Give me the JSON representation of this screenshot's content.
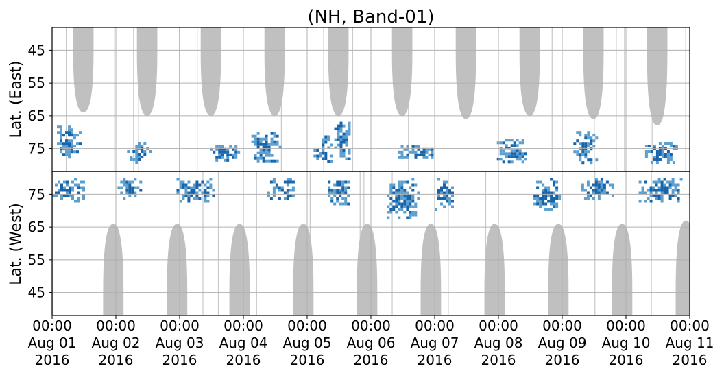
{
  "chart_data": {
    "type": "heatmap",
    "title": "(NH, Band-01)",
    "x_axis": {
      "range": [
        "2016-08-01 00:00",
        "2016-08-11 00:00"
      ],
      "ticks": [
        {
          "time": "00:00",
          "date": "Aug 01",
          "year": "2016"
        },
        {
          "time": "00:00",
          "date": "Aug 02",
          "year": "2016"
        },
        {
          "time": "00:00",
          "date": "Aug 03",
          "year": "2016"
        },
        {
          "time": "00:00",
          "date": "Aug 04",
          "year": "2016"
        },
        {
          "time": "00:00",
          "date": "Aug 05",
          "year": "2016"
        },
        {
          "time": "00:00",
          "date": "Aug 06",
          "year": "2016"
        },
        {
          "time": "00:00",
          "date": "Aug 07",
          "year": "2016"
        },
        {
          "time": "00:00",
          "date": "Aug 08",
          "year": "2016"
        },
        {
          "time": "00:00",
          "date": "Aug 09",
          "year": "2016"
        },
        {
          "time": "00:00",
          "date": "Aug 10",
          "year": "2016"
        },
        {
          "time": "00:00",
          "date": "Aug 11",
          "year": "2016"
        }
      ]
    },
    "panels": [
      {
        "name": "east",
        "ylabel": "Lat. (East)",
        "lat_range": [
          38,
          82
        ],
        "ticks": [
          45,
          55,
          65,
          75
        ],
        "tick_labels": [
          "45",
          "55",
          "65",
          "75"
        ]
      },
      {
        "name": "west",
        "ylabel": "Lat. (West)",
        "lat_range": [
          82,
          38
        ],
        "ticks": [
          75,
          65,
          55,
          45
        ],
        "tick_labels": [
          "75",
          "65",
          "55",
          "45"
        ]
      }
    ],
    "grid": true,
    "colors": {
      "strong": "#1764ab",
      "weak": "#5b9fcf",
      "no_data": "#c0c0c0",
      "grid": "#b0b0b0",
      "axis": "#000000"
    },
    "no_data_regions": [
      {
        "panel": "east",
        "day": 0.49,
        "half_width": 0.16,
        "lat_min": 64
      },
      {
        "panel": "east",
        "day": 1.49,
        "half_width": 0.16,
        "lat_min": 65
      },
      {
        "panel": "east",
        "day": 2.49,
        "half_width": 0.16,
        "lat_min": 65
      },
      {
        "panel": "east",
        "day": 3.49,
        "half_width": 0.16,
        "lat_min": 65
      },
      {
        "panel": "east",
        "day": 4.49,
        "half_width": 0.16,
        "lat_min": 65
      },
      {
        "panel": "east",
        "day": 5.49,
        "half_width": 0.16,
        "lat_min": 65
      },
      {
        "panel": "east",
        "day": 6.49,
        "half_width": 0.16,
        "lat_min": 66
      },
      {
        "panel": "east",
        "day": 7.49,
        "half_width": 0.16,
        "lat_min": 65
      },
      {
        "panel": "east",
        "day": 8.49,
        "half_width": 0.16,
        "lat_min": 66
      },
      {
        "panel": "east",
        "day": 9.49,
        "half_width": 0.16,
        "lat_min": 68
      },
      {
        "panel": "west",
        "day": 0.96,
        "half_width": 0.16,
        "lat_min": 66
      },
      {
        "panel": "west",
        "day": 1.96,
        "half_width": 0.16,
        "lat_min": 66
      },
      {
        "panel": "west",
        "day": 2.94,
        "half_width": 0.16,
        "lat_min": 66
      },
      {
        "panel": "west",
        "day": 3.94,
        "half_width": 0.16,
        "lat_min": 66
      },
      {
        "panel": "west",
        "day": 4.94,
        "half_width": 0.16,
        "lat_min": 66
      },
      {
        "panel": "west",
        "day": 5.94,
        "half_width": 0.16,
        "lat_min": 66
      },
      {
        "panel": "west",
        "day": 6.94,
        "half_width": 0.16,
        "lat_min": 66
      },
      {
        "panel": "west",
        "day": 7.94,
        "half_width": 0.16,
        "lat_min": 66
      },
      {
        "panel": "west",
        "day": 8.94,
        "half_width": 0.16,
        "lat_min": 66
      },
      {
        "panel": "west",
        "day": 9.94,
        "half_width": 0.16,
        "lat_min": 67
      }
    ],
    "activity_clusters": [
      {
        "panel": "east",
        "day": 0.25,
        "day_width": 0.35,
        "lat_low": 78,
        "lat_high": 68
      },
      {
        "panel": "east",
        "day": 1.35,
        "day_width": 0.35,
        "lat_low": 79,
        "lat_high": 73
      },
      {
        "panel": "east",
        "day": 2.7,
        "day_width": 0.45,
        "lat_low": 79,
        "lat_high": 74
      },
      {
        "panel": "east",
        "day": 3.35,
        "day_width": 0.45,
        "lat_low": 79,
        "lat_high": 70
      },
      {
        "panel": "east",
        "day": 4.25,
        "day_width": 0.3,
        "lat_low": 79,
        "lat_high": 71
      },
      {
        "panel": "east",
        "day": 4.55,
        "day_width": 0.25,
        "lat_low": 78,
        "lat_high": 66
      },
      {
        "panel": "east",
        "day": 5.7,
        "day_width": 0.55,
        "lat_low": 78,
        "lat_high": 74
      },
      {
        "panel": "east",
        "day": 7.2,
        "day_width": 0.45,
        "lat_low": 79,
        "lat_high": 72
      },
      {
        "panel": "east",
        "day": 8.35,
        "day_width": 0.35,
        "lat_low": 79,
        "lat_high": 68
      },
      {
        "panel": "east",
        "day": 9.55,
        "day_width": 0.5,
        "lat_low": 79,
        "lat_high": 73
      },
      {
        "panel": "west",
        "day": 0.25,
        "day_width": 0.5,
        "lat_low": 80,
        "lat_high": 73
      },
      {
        "panel": "west",
        "day": 1.2,
        "day_width": 0.35,
        "lat_low": 80,
        "lat_high": 74
      },
      {
        "panel": "west",
        "day": 2.25,
        "day_width": 0.6,
        "lat_low": 80,
        "lat_high": 73
      },
      {
        "panel": "west",
        "day": 3.6,
        "day_width": 0.45,
        "lat_low": 80,
        "lat_high": 74
      },
      {
        "panel": "west",
        "day": 4.5,
        "day_width": 0.35,
        "lat_low": 80,
        "lat_high": 72
      },
      {
        "panel": "west",
        "day": 5.5,
        "day_width": 0.5,
        "lat_low": 80,
        "lat_high": 68
      },
      {
        "panel": "west",
        "day": 6.15,
        "day_width": 0.3,
        "lat_low": 80,
        "lat_high": 70
      },
      {
        "panel": "west",
        "day": 7.75,
        "day_width": 0.4,
        "lat_low": 80,
        "lat_high": 70
      },
      {
        "panel": "west",
        "day": 8.55,
        "day_width": 0.5,
        "lat_low": 80,
        "lat_high": 74
      },
      {
        "panel": "west",
        "day": 9.55,
        "day_width": 0.7,
        "lat_low": 80,
        "lat_high": 73
      }
    ]
  }
}
